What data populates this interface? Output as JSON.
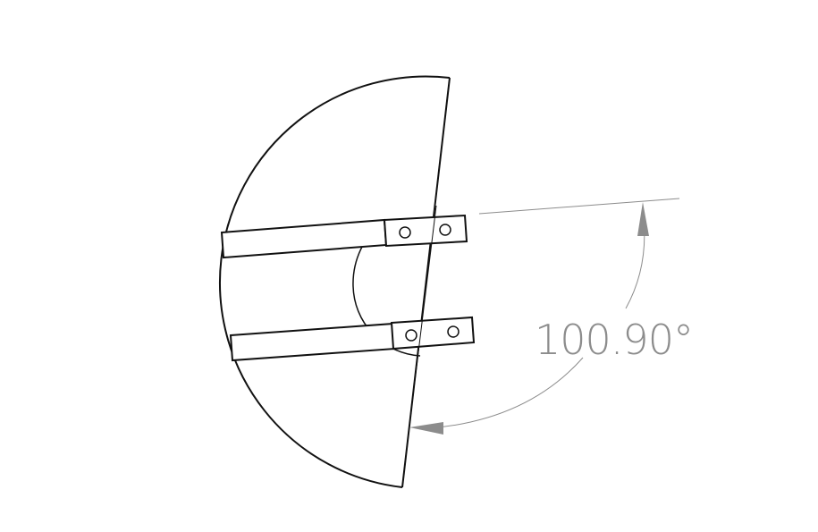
{
  "dimension": {
    "label": "100.90°"
  },
  "colors": {
    "outline": "#111111",
    "dimension": "#8c8c8c",
    "background": "#ffffff"
  }
}
